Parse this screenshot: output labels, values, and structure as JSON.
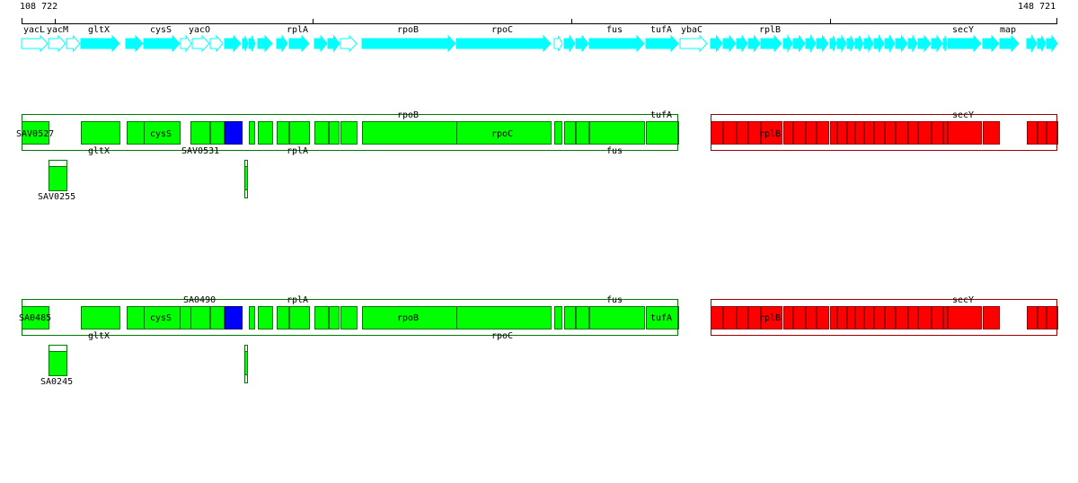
{
  "coords": {
    "start": "108 722",
    "end": "148 721"
  },
  "colors": {
    "cyan": "#00ffff",
    "green": "#00ff00",
    "blue": "#0000ff",
    "red": "#ff0000",
    "outline_green": "#007700",
    "outline_red": "#990000"
  },
  "gene_labels": [
    "yacL",
    "yacM",
    "gltX",
    "cysS",
    "yacO",
    "rplA",
    "rpoB",
    "rpoC",
    "fus",
    "tufA",
    "ybaC",
    "rplB",
    "secY",
    "map"
  ],
  "track1": {
    "labels_above": [
      "rpoB",
      "tufA",
      "secY"
    ],
    "labels_inside": [
      "SAV0527",
      "cysS",
      "rpoC",
      "rplB"
    ],
    "labels_below": [
      "gltX",
      "SAV0531",
      "rplA",
      "fus"
    ],
    "aux_label": "SAV0255"
  },
  "track2": {
    "labels_above": [
      "SA0490",
      "rplA",
      "fus",
      "secY"
    ],
    "labels_inside": [
      "SA0485",
      "cysS",
      "rpoB",
      "tufA",
      "rplB"
    ],
    "labels_below": [
      "gltX",
      "rpoC"
    ],
    "aux_label": "SA0245"
  }
}
